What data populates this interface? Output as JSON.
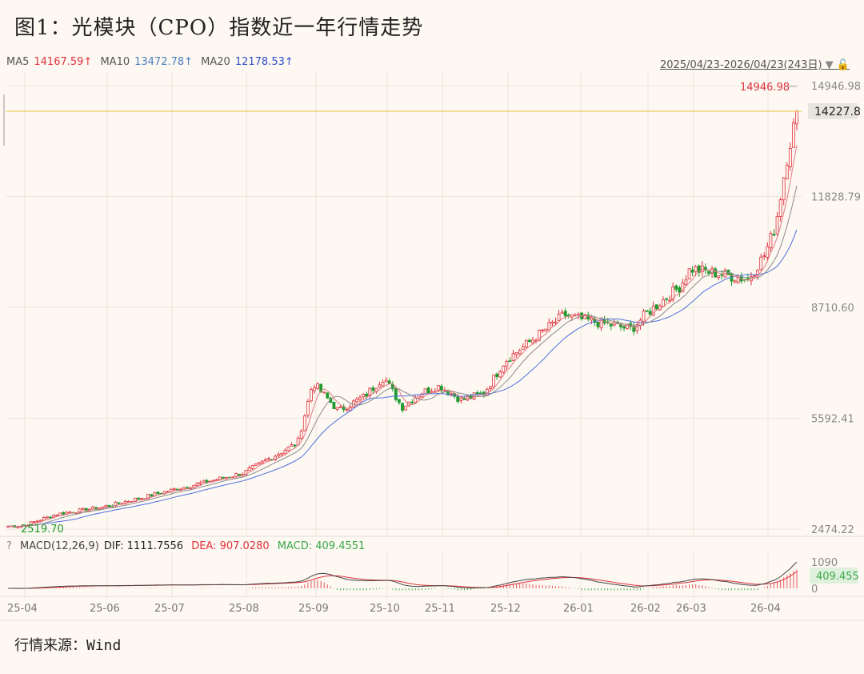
{
  "title": "图1：光模块（CPO）指数近一年行情走势",
  "source": "行情来源：Wind",
  "ma_legend": {
    "ma5_label": "MA5",
    "ma5_value": "14167.59↑",
    "ma10_label": "MA10",
    "ma10_value": "13472.78↑",
    "ma20_label": "MA20",
    "ma20_value": "12178.53↑"
  },
  "date_range": "2025/04/23-2026/04/23(243日)",
  "macd_legend": {
    "help": "?",
    "name": "MACD(12,26,9)",
    "dif": "DIF: 1111.7556",
    "dea": "DEA: 907.0280",
    "macd": "MACD: 409.4551"
  },
  "colors": {
    "up": "#e0313d",
    "down": "#1f9b2f",
    "ma5": "#e07a82",
    "ma10": "#8a8a8a",
    "ma20": "#4f6fe0",
    "crosshair": "#f0c040",
    "grid": "#ece6dc"
  },
  "chart_data": [
    {
      "type": "line",
      "title": "",
      "x": [
        "25-04",
        "25-06",
        "25-07",
        "25-08",
        "25-09",
        "25-10",
        "25-11",
        "25-12",
        "26-01",
        "26-02",
        "26-03",
        "26-04"
      ],
      "y_ticks": [
        "14946.98",
        "11828.79",
        "8710.60",
        "5592.41",
        "2474.22"
      ],
      "ylim": [
        2474.22,
        14946.98
      ],
      "high_label": "14946.98",
      "low_label": "2519.70",
      "last_value_label": "14227.8",
      "grid": true,
      "anchors": [
        [
          "25-04",
          2560
        ],
        [
          "25-05",
          2900
        ],
        [
          "25-06",
          3100
        ],
        [
          "25-07",
          3550
        ],
        [
          "25-08",
          4050
        ],
        [
          "25-08",
          4900
        ],
        [
          "25-09",
          6600
        ],
        [
          "25-09",
          5800
        ],
        [
          "25-09",
          6200
        ],
        [
          "25-10",
          6750
        ],
        [
          "25-10",
          5900
        ],
        [
          "25-10",
          6300
        ],
        [
          "25-11",
          6500
        ],
        [
          "25-11",
          6100
        ],
        [
          "25-11",
          6300
        ],
        [
          "25-12",
          7200
        ],
        [
          "25-12",
          8500
        ],
        [
          "26-01",
          8400
        ],
        [
          "26-01",
          8100
        ],
        [
          "26-02",
          8500
        ],
        [
          "26-02",
          9300
        ],
        [
          "26-03",
          9800
        ],
        [
          "26-03",
          9500
        ],
        [
          "26-04",
          10200
        ],
        [
          "26-04",
          11000
        ],
        [
          "26-04",
          12800
        ],
        [
          "26-04",
          14227.8
        ]
      ],
      "series": [
        {
          "name": "MA5"
        },
        {
          "name": "MA10"
        },
        {
          "name": "MA20"
        }
      ]
    },
    {
      "type": "bar",
      "title": "",
      "y_ticks": [
        "1090",
        "0"
      ],
      "ylim": [
        -100,
        1200
      ],
      "last_value_label": "409.455",
      "series": [
        {
          "name": "DIF",
          "last": 1111.7556
        },
        {
          "name": "DEA",
          "last": 907.028
        },
        {
          "name": "MACD",
          "last": 409.4551
        }
      ]
    }
  ]
}
